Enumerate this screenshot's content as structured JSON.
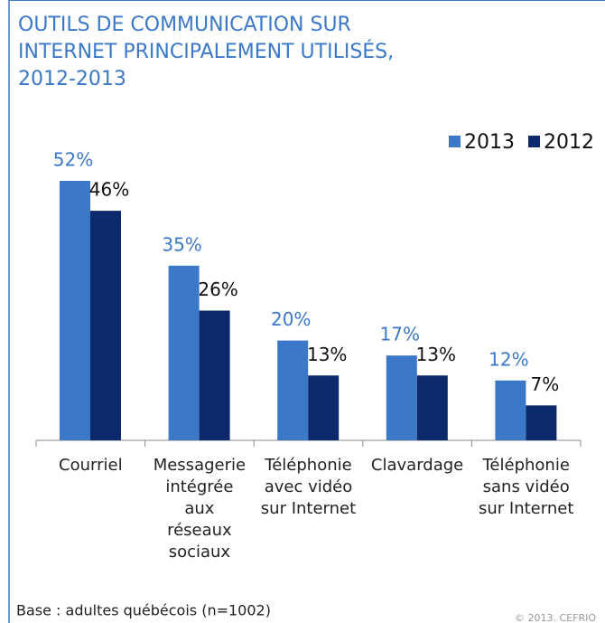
{
  "chart_data": {
    "type": "bar",
    "title": [
      "OUTILS DE COMMUNICATION SUR",
      "INTERNET PRINCIPALEMENT UTILISÉS,",
      "2012-2013"
    ],
    "categories": [
      "Courriel",
      "Messagerie\nintégrée\naux\nréseaux\nsociaux",
      "Téléphonie\navec vidéo\nsur Internet",
      "Clavardage",
      "Téléphonie\nsans vidéo\nsur Internet"
    ],
    "series": [
      {
        "name": "2013",
        "color": "#3b78c8",
        "values": [
          52,
          35,
          20,
          17,
          12
        ],
        "value_labels": [
          "52%",
          "35%",
          "20%",
          "17%",
          "12%"
        ]
      },
      {
        "name": "2012",
        "color": "#0c2a6b",
        "values": [
          46,
          26,
          13,
          13,
          7
        ],
        "value_labels": [
          "46%",
          "26%",
          "13%",
          "13%",
          "7%"
        ]
      }
    ],
    "legend": "top-right",
    "footnote": "Base : adultes québécois (n=1002)",
    "source": "© 2013. CEFRIO"
  }
}
